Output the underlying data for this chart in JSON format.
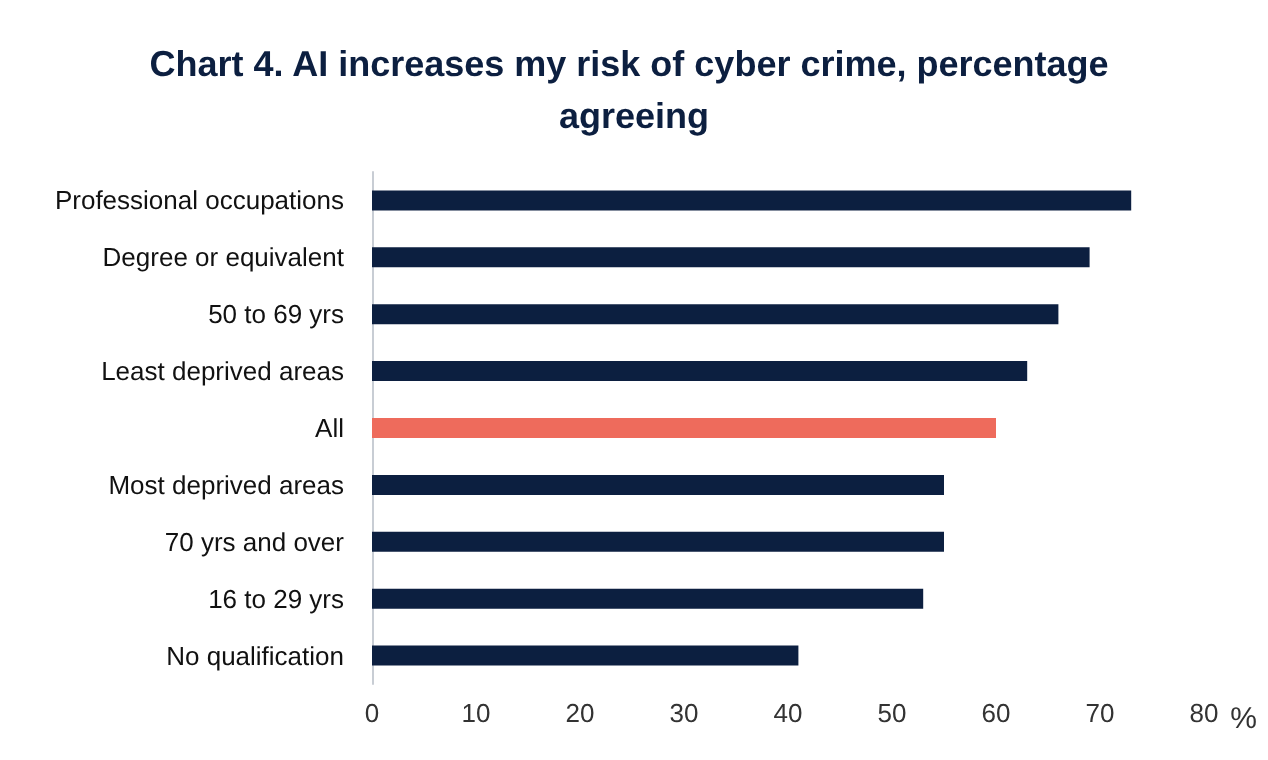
{
  "chart_data": {
    "type": "bar",
    "orientation": "horizontal",
    "title": "Chart 4. AI increases my risk of cyber crime, percentage agreeing",
    "categories": [
      "Professional occupations",
      "Degree or equivalent",
      "50 to 69 yrs",
      "Least deprived areas",
      "All",
      "Most deprived areas",
      "70 yrs and over",
      "16 to 29 yrs",
      "No qualification"
    ],
    "values": [
      73,
      69,
      66,
      63,
      60,
      55,
      55,
      53,
      41
    ],
    "colors": [
      "#0c1f40",
      "#0c1f40",
      "#0c1f40",
      "#0c1f40",
      "#ee6b5c",
      "#0c1f40",
      "#0c1f40",
      "#0c1f40",
      "#0c1f40"
    ],
    "xlabel": "%",
    "xlim": [
      0,
      80
    ],
    "xticks": [
      0,
      10,
      20,
      30,
      40,
      50,
      60,
      70,
      80
    ],
    "grid": false
  }
}
